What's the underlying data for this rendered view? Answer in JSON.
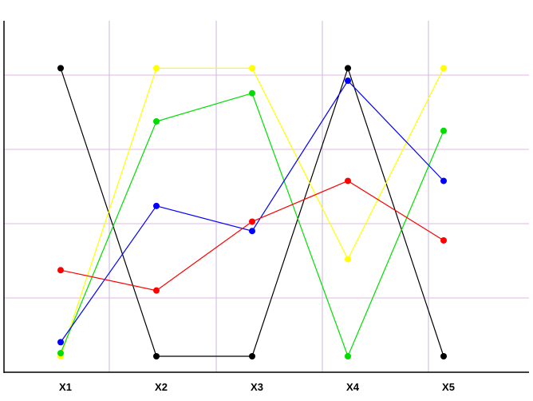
{
  "chart_data": {
    "type": "line",
    "categories": [
      "X1",
      "X2",
      "X3",
      "X4",
      "X5"
    ],
    "ylim": [
      0,
      1
    ],
    "grid": {
      "horizontal": true,
      "vertical": true
    },
    "series": [
      {
        "color": "#000000",
        "values": [
          0.92,
          0.0,
          0.0,
          0.92,
          0.0
        ]
      },
      {
        "color": "#ffff00",
        "values": [
          0.0,
          0.92,
          0.92,
          0.31,
          0.92
        ]
      },
      {
        "color": "#00dd00",
        "values": [
          0.01,
          0.75,
          0.84,
          0.0,
          0.72
        ]
      },
      {
        "color": "#0000ff",
        "values": [
          0.045,
          0.48,
          0.4,
          0.88,
          0.56
        ]
      },
      {
        "color": "#ff0000",
        "values": [
          0.275,
          0.21,
          0.43,
          0.56,
          0.37
        ]
      }
    ],
    "colors": {
      "axis": "#000000",
      "vertical_grid": "#c8b8d8",
      "horizontal_grid": "#e0b8e0"
    }
  }
}
